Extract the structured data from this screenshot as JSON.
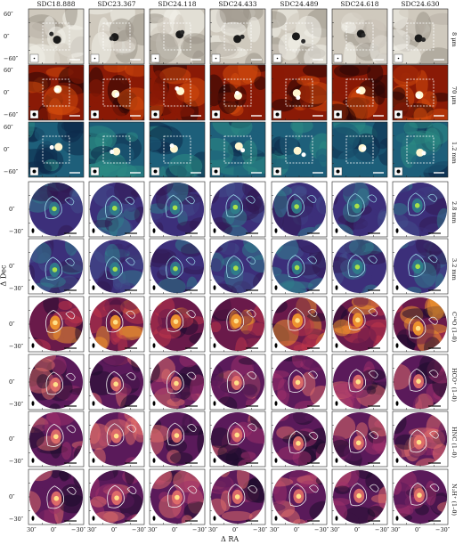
{
  "columns": [
    "SDC18.888",
    "SDC23.367",
    "SDC24.118",
    "SDC24.433",
    "SDC24.489",
    "SDC24.618",
    "SDC24.630"
  ],
  "rows": [
    {
      "label": "8 μm",
      "type": "square",
      "cmap": "gray"
    },
    {
      "label": "70 μm",
      "type": "square",
      "cmap": "hot"
    },
    {
      "label": "1.2 mm",
      "type": "square",
      "cmap": "teal"
    },
    {
      "label": "2.8 mm",
      "type": "circle",
      "cmap": "viridis"
    },
    {
      "label": "3.2 mm",
      "type": "circle",
      "cmap": "viridis"
    },
    {
      "label": "C¹⁸O (1–0)",
      "type": "circle",
      "cmap": "inferno"
    },
    {
      "label": "HCO⁺ (1–0)",
      "type": "circle",
      "cmap": "magma"
    },
    {
      "label": "HNC (1–0)",
      "type": "circle",
      "cmap": "magma"
    },
    {
      "label": "N₂H⁺ (1–0)",
      "type": "circle",
      "cmap": "magma"
    }
  ],
  "y_ticks_square": [
    "60″",
    "0″",
    "−60″"
  ],
  "y_ticks_circle": [
    "0″",
    "−30″"
  ],
  "x_ticks": [
    "30″",
    "0″",
    "−30″"
  ],
  "xlabel": "Δ RA",
  "ylabel": "Δ Dec",
  "colors": {
    "gray": [
      "#f2f0ea",
      "#cfc9bd",
      "#9b9488",
      "#5d574f"
    ],
    "hot": [
      "#2a0505",
      "#8a1a06",
      "#d24a0c",
      "#f7b040"
    ],
    "teal": [
      "#0d2a4a",
      "#1e5f7a",
      "#2c8b84",
      "#6cc2a0"
    ],
    "viridis": [
      "#301850",
      "#3c2f7a",
      "#41508c",
      "#2f7f8c"
    ],
    "inferno": [
      "#1a0a2e",
      "#6a1a4a",
      "#c2364a",
      "#f59a2c"
    ],
    "magma": [
      "#1a0c2a",
      "#5a1a5a",
      "#a0306a",
      "#e4706a"
    ]
  }
}
